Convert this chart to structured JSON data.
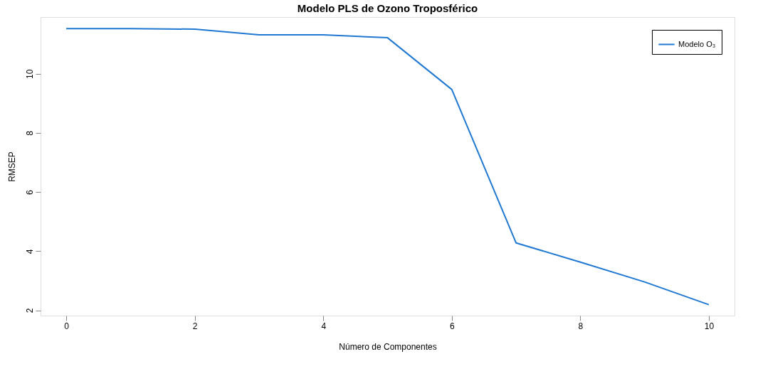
{
  "chart_data": {
    "type": "line",
    "title": "Modelo PLS de Ozono Troposférico",
    "xlabel": "Número de Componentes",
    "ylabel": "RMSEP",
    "x": [
      0,
      1,
      2,
      3,
      4,
      5,
      6,
      7,
      8,
      9,
      10
    ],
    "series": [
      {
        "name": "Modelo O₃",
        "color": "#1f78d1",
        "values": [
          11.53,
          11.53,
          11.51,
          11.32,
          11.32,
          11.22,
          9.47,
          4.28,
          3.63,
          2.96,
          2.19
        ]
      }
    ],
    "xlim": [
      -0.4,
      10.4
    ],
    "ylim": [
      1.82,
      11.92
    ],
    "xticks": [
      0,
      2,
      4,
      6,
      8,
      10
    ],
    "yticks": [
      2,
      4,
      6,
      8,
      10
    ],
    "grid": false,
    "legend": "top right",
    "marker": "none",
    "line_style": "solid"
  }
}
